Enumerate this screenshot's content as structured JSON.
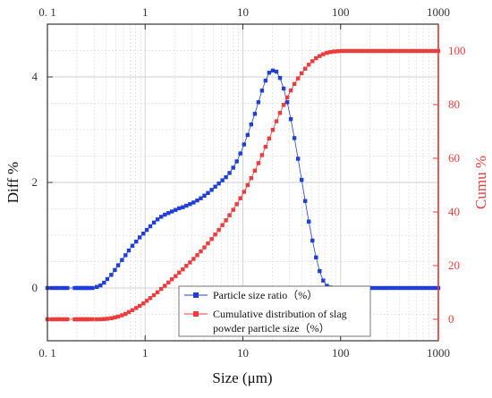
{
  "colors": {
    "left_series": "#1f3fd6",
    "right_series": "#ef3b3b",
    "right_axis": "#ef3b3b",
    "grid": "#cfcfcf",
    "frame": "#333333"
  },
  "chart_data": {
    "type": "scatter",
    "title": "",
    "xlabel": "Size (μm)",
    "ylabel": "Diff %",
    "ylabel_right": "Cumu %",
    "xscale": "log",
    "xlim": [
      0.1,
      1000
    ],
    "ylim": [
      -1,
      5
    ],
    "ylim_right": [
      -8,
      110
    ],
    "x_ticks": [
      0.1,
      1,
      10,
      100,
      1000
    ],
    "x_tick_labels": [
      "0. 1",
      "1",
      "10",
      "100",
      "1000"
    ],
    "top_x_tick_labels": [
      "0. 1",
      "1",
      "10",
      "100",
      "1000"
    ],
    "y_ticks": [
      0,
      2,
      4
    ],
    "y_tick_labels": [
      "0",
      "2",
      "4"
    ],
    "y_right_ticks": [
      0,
      20,
      40,
      60,
      80,
      100
    ],
    "y_right_tick_labels": [
      "0",
      "20",
      "40",
      "60",
      "80",
      "100"
    ],
    "grid": true,
    "legend_position": "bottom-center",
    "series": [
      {
        "name": "Particle size ratio（%）",
        "axis": "left",
        "marker": "square",
        "connected": true,
        "points": [
          [
            0.1,
            0
          ],
          [
            0.11,
            0
          ],
          [
            0.12,
            0
          ],
          [
            0.13,
            0
          ],
          [
            0.14,
            0
          ],
          [
            0.15,
            0
          ],
          [
            0.16,
            0
          ],
          [
            0.19,
            0
          ],
          [
            0.2,
            0
          ],
          [
            0.21,
            0
          ],
          [
            0.22,
            0
          ],
          [
            0.23,
            0
          ],
          [
            0.24,
            0
          ],
          [
            0.25,
            0
          ],
          [
            0.26,
            0
          ],
          [
            0.27,
            0
          ],
          [
            0.29,
            0
          ],
          [
            0.32,
            0.02
          ],
          [
            0.35,
            0.05
          ],
          [
            0.38,
            0.1
          ],
          [
            0.41,
            0.17
          ],
          [
            0.45,
            0.25
          ],
          [
            0.49,
            0.34
          ],
          [
            0.53,
            0.43
          ],
          [
            0.58,
            0.53
          ],
          [
            0.63,
            0.62
          ],
          [
            0.68,
            0.71
          ],
          [
            0.74,
            0.8
          ],
          [
            0.81,
            0.88
          ],
          [
            0.88,
            0.96
          ],
          [
            0.96,
            1.03
          ],
          [
            1.04,
            1.1
          ],
          [
            1.13,
            1.17
          ],
          [
            1.23,
            1.24
          ],
          [
            1.34,
            1.3
          ],
          [
            1.46,
            1.35
          ],
          [
            1.59,
            1.39
          ],
          [
            1.73,
            1.42
          ],
          [
            1.88,
            1.45
          ],
          [
            2.05,
            1.48
          ],
          [
            2.23,
            1.51
          ],
          [
            2.43,
            1.53
          ],
          [
            2.64,
            1.56
          ],
          [
            2.88,
            1.59
          ],
          [
            3.13,
            1.62
          ],
          [
            3.41,
            1.66
          ],
          [
            3.71,
            1.7
          ],
          [
            4.04,
            1.75
          ],
          [
            4.4,
            1.8
          ],
          [
            4.79,
            1.86
          ],
          [
            5.21,
            1.92
          ],
          [
            5.67,
            1.98
          ],
          [
            6.17,
            2.04
          ],
          [
            6.72,
            2.1
          ],
          [
            7.31,
            2.18
          ],
          [
            7.96,
            2.28
          ],
          [
            8.67,
            2.4
          ],
          [
            9.43,
            2.55
          ],
          [
            10.27,
            2.72
          ],
          [
            11.18,
            2.9
          ],
          [
            12.17,
            3.1
          ],
          [
            13.25,
            3.3
          ],
          [
            14.42,
            3.52
          ],
          [
            15.7,
            3.74
          ],
          [
            17.09,
            3.93
          ],
          [
            18.6,
            4.08
          ],
          [
            20.25,
            4.12
          ],
          [
            22.04,
            4.1
          ],
          [
            24,
            3.98
          ],
          [
            26.12,
            3.78
          ],
          [
            28.43,
            3.52
          ],
          [
            30.95,
            3.2
          ],
          [
            33.69,
            2.84
          ],
          [
            36.67,
            2.45
          ],
          [
            39.92,
            2.05
          ],
          [
            43.46,
            1.65
          ],
          [
            47.31,
            1.26
          ],
          [
            51.5,
            0.9
          ],
          [
            56.06,
            0.58
          ],
          [
            61.02,
            0.32
          ],
          [
            66.43,
            0.14
          ],
          [
            72.31,
            0.04
          ],
          [
            78.71,
            0.01
          ],
          [
            85.68,
            0
          ],
          [
            93.27,
            0
          ],
          [
            101.5,
            0
          ],
          [
            110.5,
            0
          ],
          [
            120.3,
            0
          ],
          [
            131,
            0
          ],
          [
            142.6,
            0
          ],
          [
            155.2,
            0
          ],
          [
            168.9,
            0
          ],
          [
            183.9,
            0
          ],
          [
            200.2,
            0
          ],
          [
            217.9,
            0
          ],
          [
            237.2,
            0
          ],
          [
            258.2,
            0
          ],
          [
            281.1,
            0
          ],
          [
            306,
            0
          ],
          [
            333.1,
            0
          ],
          [
            362.6,
            0
          ],
          [
            394.7,
            0
          ],
          [
            429.7,
            0
          ],
          [
            467.7,
            0
          ],
          [
            509.2,
            0
          ],
          [
            554.2,
            0
          ],
          [
            603.3,
            0
          ],
          [
            656.8,
            0
          ],
          [
            714.9,
            0
          ],
          [
            778.3,
            0
          ],
          [
            847.2,
            0
          ],
          [
            922.2,
            0
          ],
          [
            1000,
            0
          ]
        ]
      },
      {
        "name": "Cumulative distribution of slag powder particle size（%）",
        "axis": "right",
        "marker": "square",
        "connected": true,
        "points": [
          [
            0.1,
            0
          ],
          [
            0.11,
            0
          ],
          [
            0.12,
            0
          ],
          [
            0.13,
            0
          ],
          [
            0.14,
            0
          ],
          [
            0.15,
            0
          ],
          [
            0.16,
            0
          ],
          [
            0.19,
            0
          ],
          [
            0.2,
            0
          ],
          [
            0.21,
            0
          ],
          [
            0.22,
            0
          ],
          [
            0.23,
            0
          ],
          [
            0.24,
            0
          ],
          [
            0.25,
            0
          ],
          [
            0.26,
            0
          ],
          [
            0.27,
            0
          ],
          [
            0.29,
            0
          ],
          [
            0.32,
            0
          ],
          [
            0.35,
            0
          ],
          [
            0.38,
            0.1
          ],
          [
            0.41,
            0.2
          ],
          [
            0.45,
            0.4
          ],
          [
            0.49,
            0.7
          ],
          [
            0.53,
            1
          ],
          [
            0.58,
            1.5
          ],
          [
            0.63,
            2
          ],
          [
            0.68,
            2.7
          ],
          [
            0.74,
            3.4
          ],
          [
            0.81,
            4.2
          ],
          [
            0.88,
            5
          ],
          [
            0.96,
            5.9
          ],
          [
            1.04,
            6.9
          ],
          [
            1.13,
            7.9
          ],
          [
            1.23,
            9
          ],
          [
            1.34,
            10.1
          ],
          [
            1.46,
            11.3
          ],
          [
            1.59,
            12.5
          ],
          [
            1.73,
            13.7
          ],
          [
            1.88,
            14.9
          ],
          [
            2.05,
            16.1
          ],
          [
            2.23,
            17.4
          ],
          [
            2.43,
            18.6
          ],
          [
            2.64,
            19.9
          ],
          [
            2.88,
            21.2
          ],
          [
            3.13,
            22.5
          ],
          [
            3.41,
            23.9
          ],
          [
            3.71,
            25.3
          ],
          [
            4.04,
            26.8
          ],
          [
            4.4,
            28.3
          ],
          [
            4.79,
            29.9
          ],
          [
            5.21,
            31.6
          ],
          [
            5.67,
            33.3
          ],
          [
            6.17,
            35.1
          ],
          [
            6.72,
            36.9
          ],
          [
            7.31,
            38.8
          ],
          [
            7.96,
            40.8
          ],
          [
            8.67,
            42.9
          ],
          [
            9.43,
            45.1
          ],
          [
            10.27,
            47.5
          ],
          [
            11.18,
            50
          ],
          [
            12.17,
            52.6
          ],
          [
            13.25,
            55.4
          ],
          [
            14.42,
            58.2
          ],
          [
            15.7,
            61.2
          ],
          [
            17.09,
            64.3
          ],
          [
            18.6,
            67.4
          ],
          [
            20.25,
            70.6
          ],
          [
            22.04,
            73.8
          ],
          [
            24,
            76.9
          ],
          [
            26.12,
            79.9
          ],
          [
            28.43,
            82.7
          ],
          [
            30.95,
            85.3
          ],
          [
            33.69,
            87.7
          ],
          [
            36.67,
            89.8
          ],
          [
            39.92,
            91.7
          ],
          [
            43.46,
            93.4
          ],
          [
            47.31,
            94.9
          ],
          [
            51.5,
            96.2
          ],
          [
            56.06,
            97.3
          ],
          [
            61.02,
            98.1
          ],
          [
            66.43,
            98.8
          ],
          [
            72.31,
            99.3
          ],
          [
            78.71,
            99.6
          ],
          [
            85.68,
            99.8
          ],
          [
            93.27,
            99.9
          ],
          [
            101.5,
            100
          ],
          [
            110.5,
            100
          ],
          [
            120.3,
            100
          ],
          [
            131,
            100
          ],
          [
            142.6,
            100
          ],
          [
            155.2,
            100
          ],
          [
            168.9,
            100
          ],
          [
            183.9,
            100
          ],
          [
            200.2,
            100
          ],
          [
            217.9,
            100
          ],
          [
            237.2,
            100
          ],
          [
            258.2,
            100
          ],
          [
            281.1,
            100
          ],
          [
            306,
            100
          ],
          [
            333.1,
            100
          ],
          [
            362.6,
            100
          ],
          [
            394.7,
            100
          ],
          [
            429.7,
            100
          ],
          [
            467.7,
            100
          ],
          [
            509.2,
            100
          ],
          [
            554.2,
            100
          ],
          [
            603.3,
            100
          ],
          [
            656.8,
            100
          ],
          [
            714.9,
            100
          ],
          [
            778.3,
            100
          ],
          [
            847.2,
            100
          ],
          [
            922.2,
            100
          ],
          [
            1000,
            100
          ]
        ]
      }
    ]
  }
}
